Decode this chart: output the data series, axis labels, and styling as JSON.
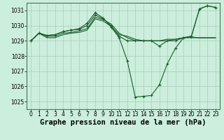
{
  "bg_color": "#cceedd",
  "grid_color": "#aaccbb",
  "line_color": "#1a5c2a",
  "marker_color": "#1a5c2a",
  "xlabel": "Graphe pression niveau de la mer (hPa)",
  "xlabel_fontsize": 7.5,
  "tick_fontsize": 5.5,
  "xlim": [
    -0.5,
    23.5
  ],
  "ylim": [
    1024.5,
    1031.5
  ],
  "yticks": [
    1025,
    1026,
    1027,
    1028,
    1029,
    1030,
    1031
  ],
  "xticks": [
    0,
    1,
    2,
    3,
    4,
    5,
    6,
    7,
    8,
    9,
    10,
    11,
    12,
    13,
    14,
    15,
    16,
    17,
    18,
    19,
    20,
    21,
    22,
    23
  ],
  "series": [
    {
      "x": [
        0,
        1,
        2,
        3,
        4,
        5,
        6,
        7,
        8,
        9,
        10,
        11,
        12,
        13,
        14,
        15,
        16,
        17,
        18,
        19,
        20,
        21,
        22,
        23
      ],
      "y": [
        1029.0,
        1029.5,
        1029.2,
        1029.2,
        1029.4,
        1029.5,
        1029.55,
        1029.7,
        1030.45,
        1030.3,
        1029.95,
        1029.4,
        1029.3,
        1029.1,
        1029.0,
        1029.0,
        1029.0,
        1029.1,
        1029.1,
        1029.2,
        1029.2,
        1029.2,
        1029.2,
        1029.2
      ],
      "markers": false
    },
    {
      "x": [
        0,
        1,
        2,
        3,
        4,
        5,
        6,
        7,
        8,
        9,
        10,
        11,
        12,
        13,
        14,
        15,
        16,
        17,
        18,
        19,
        20,
        21,
        22,
        23
      ],
      "y": [
        1029.0,
        1029.5,
        1029.3,
        1029.3,
        1029.5,
        1029.55,
        1029.65,
        1029.8,
        1030.55,
        1030.4,
        1030.1,
        1029.5,
        1029.2,
        1029.0,
        1029.0,
        1029.0,
        1029.0,
        1029.0,
        1029.1,
        1029.2,
        1029.25,
        1029.2,
        1029.2,
        1029.2
      ],
      "markers": false
    },
    {
      "x": [
        0,
        1,
        2,
        3,
        4,
        5,
        6,
        7,
        8,
        9,
        10,
        11,
        12,
        13,
        14,
        15,
        16,
        17,
        18,
        19,
        20,
        21,
        22,
        23
      ],
      "y": [
        1029.0,
        1029.5,
        1029.35,
        1029.4,
        1029.6,
        1029.7,
        1029.75,
        1030.0,
        1030.7,
        1030.45,
        1030.0,
        1029.3,
        1029.0,
        1029.0,
        1029.0,
        1029.0,
        1028.65,
        1029.0,
        1029.0,
        1029.2,
        1029.3,
        1031.1,
        1031.3,
        1031.2
      ],
      "markers": true
    },
    {
      "x": [
        0,
        1,
        2,
        3,
        4,
        5,
        6,
        7,
        8,
        9,
        10,
        11,
        12,
        13,
        14,
        15,
        16,
        17,
        18,
        19,
        20,
        21,
        22,
        23
      ],
      "y": [
        1029.0,
        1029.5,
        1029.35,
        1029.4,
        1029.6,
        1029.7,
        1029.8,
        1030.15,
        1030.85,
        1030.5,
        1029.9,
        1029.2,
        1027.7,
        1025.3,
        1025.35,
        1025.4,
        1026.1,
        1027.5,
        1028.5,
        1029.2,
        1029.3,
        1031.1,
        1031.3,
        1031.2
      ],
      "markers": true
    }
  ]
}
